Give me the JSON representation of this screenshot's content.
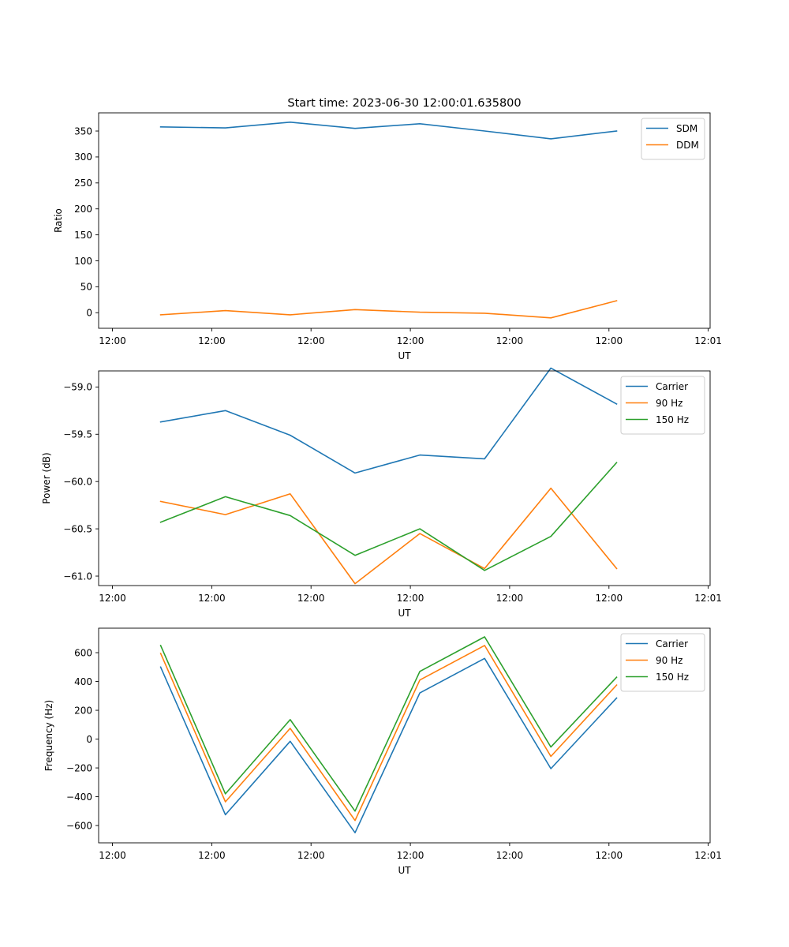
{
  "chart_data": [
    {
      "type": "line",
      "title": "Start time: 2023-06-30 12:00:01.635800",
      "xlabel": "UT",
      "ylabel": "Ratio",
      "x_tick_labels": [
        "12:00",
        "12:00",
        "12:00",
        "12:00",
        "12:00",
        "12:00",
        "12:01"
      ],
      "yticks": [
        0,
        50,
        100,
        150,
        200,
        250,
        300,
        350
      ],
      "ylim": [
        -30,
        385
      ],
      "grid": false,
      "legend": "top-right",
      "series": [
        {
          "name": "SDM",
          "color": "#1f77b4",
          "values": [
            358,
            356,
            367,
            355,
            364,
            350,
            335,
            350
          ]
        },
        {
          "name": "DDM",
          "color": "#ff7f0e",
          "values": [
            -4,
            4,
            -4,
            6,
            1,
            -1,
            -10,
            23
          ]
        }
      ]
    },
    {
      "type": "line",
      "title": "",
      "xlabel": "UT",
      "ylabel": "Power (dB)",
      "x_tick_labels": [
        "12:00",
        "12:00",
        "12:00",
        "12:00",
        "12:00",
        "12:00",
        "12:01"
      ],
      "yticks": [
        -61.0,
        -60.5,
        -60.0,
        -59.5,
        -59.0
      ],
      "ytick_labels": [
        "−61.0",
        "−60.5",
        "−60.0",
        "−59.5",
        "−59.0"
      ],
      "ylim": [
        -61.1,
        -58.83
      ],
      "grid": false,
      "legend": "top-right",
      "series": [
        {
          "name": "Carrier",
          "color": "#1f77b4",
          "values": [
            -59.37,
            -59.25,
            -59.51,
            -59.91,
            -59.72,
            -59.76,
            -58.8,
            -59.18
          ]
        },
        {
          "name": "90 Hz",
          "color": "#ff7f0e",
          "values": [
            -60.21,
            -60.35,
            -60.13,
            -61.08,
            -60.55,
            -60.92,
            -60.07,
            -60.92
          ]
        },
        {
          "name": "150 Hz",
          "color": "#2ca02c",
          "values": [
            -60.43,
            -60.16,
            -60.36,
            -60.78,
            -60.5,
            -60.94,
            -60.58,
            -59.8
          ]
        }
      ]
    },
    {
      "type": "line",
      "title": "",
      "xlabel": "UT",
      "ylabel": "Frequency (Hz)",
      "x_tick_labels": [
        "12:00",
        "12:00",
        "12:00",
        "12:00",
        "12:00",
        "12:00",
        "12:01"
      ],
      "yticks": [
        -600,
        -400,
        -200,
        0,
        200,
        400,
        600
      ],
      "ytick_labels": [
        "−600",
        "−400",
        "−200",
        "0",
        "200",
        "400",
        "600"
      ],
      "ylim": [
        -720,
        770
      ],
      "grid": false,
      "legend": "top-right",
      "series": [
        {
          "name": "Carrier",
          "color": "#1f77b4",
          "values": [
            500,
            -525,
            -15,
            -650,
            320,
            560,
            -205,
            285
          ]
        },
        {
          "name": "90 Hz",
          "color": "#ff7f0e",
          "values": [
            595,
            -435,
            75,
            -565,
            410,
            650,
            -120,
            375
          ]
        },
        {
          "name": "150 Hz",
          "color": "#2ca02c",
          "values": [
            650,
            -380,
            135,
            -500,
            470,
            710,
            -55,
            430
          ]
        }
      ]
    }
  ]
}
